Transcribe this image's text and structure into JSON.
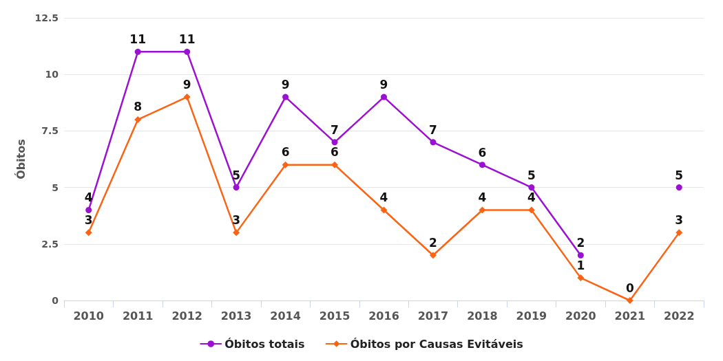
{
  "chart_data": {
    "type": "line",
    "ylabel": "Óbitos",
    "categories": [
      "2010",
      "2011",
      "2012",
      "2013",
      "2014",
      "2015",
      "2016",
      "2017",
      "2018",
      "2019",
      "2020",
      "2021",
      "2022"
    ],
    "series": [
      {
        "name": "Óbitos totais",
        "color": "#9b10d2",
        "marker": "circle",
        "values": [
          4,
          11,
          11,
          5,
          9,
          7,
          9,
          7,
          6,
          5,
          2,
          null,
          5
        ]
      },
      {
        "name": "Óbitos por Causas Evitáveis",
        "color": "#fa6414",
        "marker": "diamond",
        "values": [
          3,
          8,
          9,
          3,
          6,
          6,
          4,
          2,
          4,
          4,
          1,
          0,
          3
        ]
      }
    ],
    "ylim": [
      0,
      12.5
    ],
    "yticks": [
      0,
      2.5,
      5,
      7.5,
      10,
      12.5
    ],
    "grid": "y",
    "legend": "bottom",
    "data_labels": true,
    "line_style": "solid"
  }
}
